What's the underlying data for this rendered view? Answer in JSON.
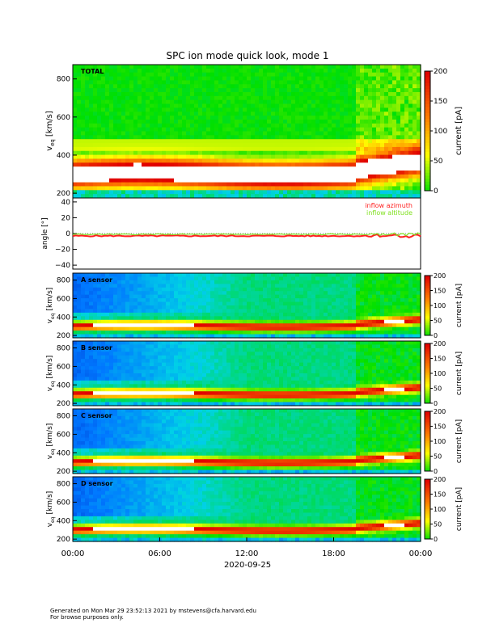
{
  "chart_data": {
    "title": "SPC ion mode quick look, mode 1",
    "type": "heatmap",
    "xlabel": "2020-09-25",
    "x_ticks": [
      "00:00",
      "06:00",
      "12:00",
      "18:00",
      "00:00"
    ],
    "xlim_hours": [
      0,
      24
    ],
    "colorbar": {
      "label": "current [pA]",
      "range": [
        0,
        200
      ],
      "ticks_total": [
        "200",
        "150",
        "100",
        "50",
        "0"
      ],
      "ticks_sensor": [
        "200",
        "150",
        "100",
        "50",
        "0"
      ]
    },
    "velocity_axis": {
      "label_main": "v",
      "label_sub": "eq",
      "label_unit": "[km/s]",
      "ticks_total": [
        "800",
        "600",
        "400",
        "200"
      ],
      "ticks_sensor": [
        "800",
        "600",
        "400",
        "200"
      ],
      "range": [
        175,
        875
      ]
    },
    "panels": [
      {
        "id": "total",
        "label": "TOTAL",
        "peak_velocity": 290
      },
      {
        "id": "a",
        "label": "A sensor",
        "peak_velocity": 300
      },
      {
        "id": "b",
        "label": "B sensor",
        "peak_velocity": 300
      },
      {
        "id": "c",
        "label": "C sensor",
        "peak_velocity": 300
      },
      {
        "id": "d",
        "label": "D sensor",
        "peak_velocity": 300
      }
    ],
    "angle_panel": {
      "ylabel": "angle [°]",
      "ylim": [
        -45,
        45
      ],
      "y_ticks": [
        "40",
        "20",
        "0",
        "−20",
        "−40"
      ],
      "series": [
        {
          "name": "inflow azimuth",
          "color": "#ff2020",
          "value": -3
        },
        {
          "name": "inflow altitude",
          "color": "#80e020",
          "value": -1
        }
      ]
    },
    "colors": {
      "zero": "#00e000",
      "low": "#ffff00",
      "mid": "#ff8000",
      "high": "#e00000",
      "saturated": "#ffffff",
      "background_low": "#0020c0"
    }
  },
  "footer": {
    "line1": "Generated on Mon Mar 29 23:52:13 2021 by mstevens@cfa.harvard.edu",
    "line2": "For browse purposes only."
  }
}
